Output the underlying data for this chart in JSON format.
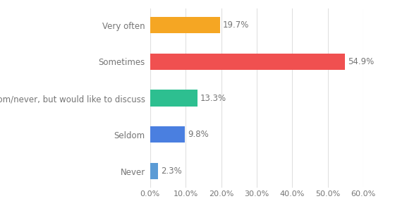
{
  "categories": [
    "Very often",
    "Sometimes",
    "Seldom/never, but would like to discuss",
    "Seldom",
    "Never"
  ],
  "values": [
    19.7,
    54.9,
    13.3,
    9.8,
    2.3
  ],
  "bar_colors": [
    "#f5a623",
    "#f05050",
    "#2dbf90",
    "#4a7fe0",
    "#5b9bd5"
  ],
  "label_color": "#757575",
  "background_color": "#ffffff",
  "xlim": [
    0,
    60
  ],
  "xticks": [
    0,
    10,
    20,
    30,
    40,
    50,
    60
  ],
  "xtick_labels": [
    "0.0%",
    "10.0%",
    "20.0%",
    "30.0%",
    "40.0%",
    "50.0%",
    "60.0%"
  ],
  "bar_height": 0.45,
  "value_fontsize": 8.5,
  "tick_fontsize": 8,
  "label_fontsize": 8.5,
  "grid_color": "#e0e0e0"
}
